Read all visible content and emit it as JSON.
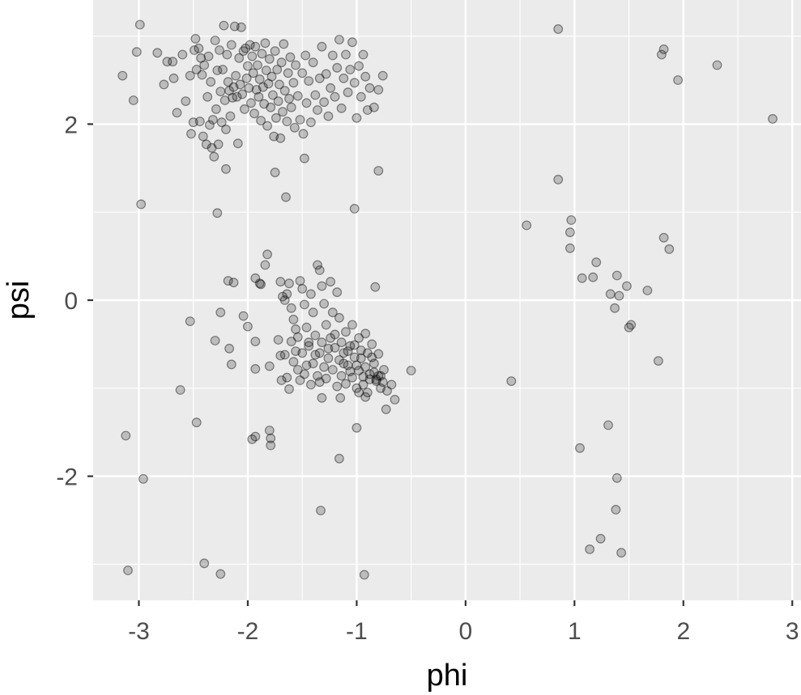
{
  "chart_data": {
    "type": "scatter",
    "title": "",
    "xlabel": "phi",
    "ylabel": "psi",
    "xlim": [
      -3.42,
      3.08
    ],
    "ylim": [
      -3.41,
      3.41
    ],
    "x_ticks": [
      -3,
      -2,
      -1,
      0,
      1,
      2,
      3
    ],
    "x_tick_labels": [
      "-3",
      "-2",
      "-1",
      "0",
      "1",
      "2",
      "3"
    ],
    "y_ticks": [
      -2,
      0,
      2
    ],
    "y_tick_labels": [
      "-2",
      "0",
      "2"
    ],
    "grid": true,
    "colors": {
      "panel_background": "#ebebeb",
      "grid_line": "#ffffff",
      "point_fill": "#000000",
      "point_opacity": 0.2,
      "axis_text": "#4d4d4d",
      "axis_title": "#000000"
    },
    "points": [
      [
        -2.99,
        3.13
      ],
      [
        -3.15,
        2.55
      ],
      [
        -3.02,
        2.82
      ],
      [
        -3.05,
        2.27
      ],
      [
        -2.98,
        1.09
      ],
      [
        -2.83,
        2.81
      ],
      [
        -2.74,
        2.71
      ],
      [
        -2.77,
        2.45
      ],
      [
        -2.69,
        2.71
      ],
      [
        -2.68,
        2.52
      ],
      [
        -2.65,
        2.13
      ],
      [
        -2.6,
        2.79
      ],
      [
        -2.57,
        2.26
      ],
      [
        -2.53,
        2.55
      ],
      [
        -2.52,
        1.89
      ],
      [
        -2.5,
        2.02
      ],
      [
        -2.49,
        2.84
      ],
      [
        -2.48,
        2.97
      ],
      [
        -2.47,
        2.62
      ],
      [
        -2.45,
        2.86
      ],
      [
        -2.44,
        2.03
      ],
      [
        -2.43,
        2.75
      ],
      [
        -2.42,
        2.56
      ],
      [
        -2.41,
        1.86
      ],
      [
        -2.4,
        2.67
      ],
      [
        -2.38,
        1.77
      ],
      [
        -2.37,
        2.31
      ],
      [
        -2.36,
        2.77
      ],
      [
        -2.35,
        1.99
      ],
      [
        -2.34,
        2.48
      ],
      [
        -2.33,
        1.73
      ],
      [
        -2.32,
        2.05
      ],
      [
        -2.31,
        1.63
      ],
      [
        -2.3,
        2.95
      ],
      [
        -2.29,
        2.17
      ],
      [
        -2.28,
        2.61
      ],
      [
        -2.27,
        1.77
      ],
      [
        -2.26,
        2.84
      ],
      [
        -2.25,
        2.37
      ],
      [
        -2.24,
        2.02
      ],
      [
        -2.23,
        2.62
      ],
      [
        -2.22,
        3.12
      ],
      [
        -2.21,
        2.27
      ],
      [
        -2.2,
        1.94
      ],
      [
        -2.19,
        2.79
      ],
      [
        -2.18,
        2.48
      ],
      [
        -2.17,
        2.38
      ],
      [
        -2.16,
        2.09
      ],
      [
        -2.15,
        2.9
      ],
      [
        -2.14,
        2.3
      ],
      [
        -2.13,
        2.42
      ],
      [
        -2.12,
        3.11
      ],
      [
        -2.11,
        2.55
      ],
      [
        -2.1,
        2.31
      ],
      [
        -2.09,
        1.78
      ],
      [
        -2.08,
        2.75
      ],
      [
        -2.07,
        2.45
      ],
      [
        -2.06,
        3.1
      ],
      [
        -2.05,
        2.34
      ],
      [
        -2.04,
        2.83
      ],
      [
        -2.03,
        2.17
      ],
      [
        -2.02,
        2.86
      ],
      [
        -2.01,
        2.52
      ],
      [
        -2.0,
        2.66
      ],
      [
        -1.99,
        2.41
      ],
      [
        -1.98,
        2.9
      ],
      [
        -1.97,
        2.24
      ],
      [
        -1.96,
        2.77
      ],
      [
        -1.95,
        2.58
      ],
      [
        -1.94,
        2.12
      ],
      [
        -1.93,
        2.88
      ],
      [
        -1.92,
        2.39
      ],
      [
        -1.91,
        2.67
      ],
      [
        -1.9,
        2.31
      ],
      [
        -1.89,
        2.51
      ],
      [
        -1.88,
        2.04
      ],
      [
        -1.87,
        2.8
      ],
      [
        -1.86,
        2.42
      ],
      [
        -1.85,
        2.23
      ],
      [
        -1.84,
        2.92
      ],
      [
        -1.83,
        2.61
      ],
      [
        -1.82,
        1.98
      ],
      [
        -1.81,
        2.46
      ],
      [
        -1.8,
        2.74
      ],
      [
        -1.79,
        2.19
      ],
      [
        -1.78,
        2.54
      ],
      [
        -1.77,
        2.33
      ],
      [
        -1.76,
        1.86
      ],
      [
        -1.75,
        2.83
      ],
      [
        -1.74,
        2.07
      ],
      [
        -1.73,
        2.62
      ],
      [
        -1.72,
        2.26
      ],
      [
        -1.71,
        2.45
      ],
      [
        -1.7,
        1.84
      ],
      [
        -1.69,
        2.7
      ],
      [
        -1.68,
        2.14
      ],
      [
        -1.67,
        2.91
      ],
      [
        -1.66,
        2.38
      ],
      [
        -1.65,
        1.17
      ],
      [
        -1.64,
        2.03
      ],
      [
        -1.63,
        2.58
      ],
      [
        -1.62,
        2.29
      ],
      [
        -1.61,
        2.76
      ],
      [
        -1.6,
        2.19
      ],
      [
        -1.58,
        2.47
      ],
      [
        -1.57,
        1.96
      ],
      [
        -1.56,
        2.67
      ],
      [
        -1.54,
        2.32
      ],
      [
        -1.52,
        2.05
      ],
      [
        -1.5,
        2.58
      ],
      [
        -1.49,
        1.89
      ],
      [
        -1.47,
        2.78
      ],
      [
        -1.46,
        2.24
      ],
      [
        -1.44,
        2.49
      ],
      [
        -1.42,
        2.02
      ],
      [
        -1.4,
        2.7
      ],
      [
        -1.38,
        2.33
      ],
      [
        -1.36,
        2.16
      ],
      [
        -1.34,
        2.52
      ],
      [
        -1.32,
        2.88
      ],
      [
        -1.3,
        2.25
      ],
      [
        -1.28,
        2.57
      ],
      [
        -1.26,
        2.09
      ],
      [
        -1.24,
        2.41
      ],
      [
        -1.22,
        2.78
      ],
      [
        -1.2,
        2.31
      ],
      [
        -1.18,
        2.64
      ],
      [
        -1.16,
        2.96
      ],
      [
        -1.14,
        2.18
      ],
      [
        -1.12,
        2.52
      ],
      [
        -1.1,
        2.79
      ],
      [
        -1.08,
        2.36
      ],
      [
        -1.06,
        2.62
      ],
      [
        -1.04,
        2.93
      ],
      [
        -1.02,
        2.47
      ],
      [
        -1.0,
        2.07
      ],
      [
        -0.98,
        2.66
      ],
      [
        -0.96,
        2.31
      ],
      [
        -0.94,
        2.79
      ],
      [
        -0.92,
        2.54
      ],
      [
        -0.9,
        2.16
      ],
      [
        -0.88,
        2.41
      ],
      [
        -0.84,
        2.19
      ],
      [
        -0.8,
        2.39
      ],
      [
        -0.76,
        2.55
      ],
      [
        -2.2,
        1.49
      ],
      [
        -1.75,
        1.45
      ],
      [
        -2.28,
        0.99
      ],
      [
        -1.48,
        1.61
      ],
      [
        -1.02,
        1.04
      ],
      [
        -0.8,
        1.47
      ],
      [
        -2.18,
        0.22
      ],
      [
        -2.13,
        0.2
      ],
      [
        -2.25,
        -0.14
      ],
      [
        -2.04,
        -0.18
      ],
      [
        -2.0,
        -0.3
      ],
      [
        -2.3,
        -0.46
      ],
      [
        -2.17,
        -0.55
      ],
      [
        -2.15,
        -0.73
      ],
      [
        -2.53,
        -0.24
      ],
      [
        -1.93,
        0.25
      ],
      [
        -1.89,
        0.19
      ],
      [
        -1.84,
        0.4
      ],
      [
        -1.82,
        0.52
      ],
      [
        -1.88,
        0.18
      ],
      [
        -1.93,
        -0.47
      ],
      [
        -1.93,
        -0.78
      ],
      [
        -1.8,
        -0.75
      ],
      [
        -1.7,
        0.21
      ],
      [
        -1.68,
        0.04
      ],
      [
        -1.66,
        0.0
      ],
      [
        -1.64,
        0.07
      ],
      [
        -1.62,
        0.19
      ],
      [
        -1.6,
        -0.09
      ],
      [
        -1.58,
        -0.22
      ],
      [
        -1.56,
        -0.33
      ],
      [
        -1.54,
        -0.42
      ],
      [
        -1.52,
        0.22
      ],
      [
        -1.5,
        0.13
      ],
      [
        -1.48,
        -0.05
      ],
      [
        -1.46,
        -0.31
      ],
      [
        -1.44,
        -0.48
      ],
      [
        -1.42,
        0.07
      ],
      [
        -1.4,
        -0.14
      ],
      [
        -1.38,
        -0.62
      ],
      [
        -1.36,
        0.4
      ],
      [
        -1.34,
        0.34
      ],
      [
        -1.32,
        0.16
      ],
      [
        -1.3,
        -0.04
      ],
      [
        -1.28,
        -0.28
      ],
      [
        -1.26,
        -0.55
      ],
      [
        -1.24,
        0.21
      ],
      [
        -1.22,
        -0.14
      ],
      [
        -1.2,
        -0.39
      ],
      [
        -1.18,
        0.09
      ],
      [
        -1.16,
        -0.2
      ],
      [
        -1.14,
        -0.48
      ],
      [
        -1.12,
        -0.72
      ],
      [
        -1.1,
        -0.36
      ],
      [
        -1.08,
        -0.58
      ],
      [
        -1.06,
        -0.81
      ],
      [
        -1.04,
        -0.28
      ],
      [
        -1.02,
        -0.51
      ],
      [
        -1.0,
        -0.74
      ],
      [
        -0.98,
        -0.43
      ],
      [
        -0.96,
        -0.66
      ],
      [
        -0.94,
        -0.87
      ],
      [
        -0.92,
        -0.38
      ],
      [
        -0.9,
        -0.6
      ],
      [
        -0.88,
        -0.84
      ],
      [
        -0.86,
        -0.5
      ],
      [
        -0.84,
        -0.72
      ],
      [
        -0.82,
        -0.92
      ],
      [
        -0.8,
        -0.61
      ],
      [
        -0.78,
        -0.86
      ],
      [
        -0.75,
        -0.79
      ],
      [
        -0.72,
        -1.03
      ],
      [
        -0.68,
        -0.96
      ],
      [
        -0.65,
        -1.13
      ],
      [
        -0.5,
        -0.8
      ],
      [
        -0.83,
        0.15
      ],
      [
        -1.72,
        -0.45
      ],
      [
        -1.7,
        -0.63
      ],
      [
        -1.69,
        -0.91
      ],
      [
        -1.66,
        -0.62
      ],
      [
        -1.64,
        -0.88
      ],
      [
        -1.62,
        -1.01
      ],
      [
        -1.6,
        -0.47
      ],
      [
        -1.58,
        -0.7
      ],
      [
        -1.56,
        -0.58
      ],
      [
        -1.54,
        -0.79
      ],
      [
        -1.52,
        -0.91
      ],
      [
        -1.5,
        -0.6
      ],
      [
        -1.48,
        -0.84
      ],
      [
        -1.46,
        -0.74
      ],
      [
        -1.44,
        -0.52
      ],
      [
        -1.42,
        -0.96
      ],
      [
        -1.4,
        -0.72
      ],
      [
        -1.38,
        -0.4
      ],
      [
        -1.36,
        -0.86
      ],
      [
        -1.34,
        -0.6
      ],
      [
        -1.32,
        -0.48
      ],
      [
        -1.3,
        -0.76
      ],
      [
        -1.28,
        -0.89
      ],
      [
        -1.26,
        -0.66
      ],
      [
        -1.24,
        -0.43
      ],
      [
        -1.22,
        -0.79
      ],
      [
        -1.2,
        -0.54
      ],
      [
        -1.18,
        -0.98
      ],
      [
        -1.16,
        -0.68
      ],
      [
        -1.14,
        -0.86
      ],
      [
        -1.12,
        -0.6
      ],
      [
        -1.1,
        -0.95
      ],
      [
        -1.08,
        -0.74
      ],
      [
        -1.06,
        -0.52
      ],
      [
        -1.04,
        -0.88
      ],
      [
        -1.02,
        -0.65
      ],
      [
        -1.0,
        -1.0
      ],
      [
        -0.98,
        -0.8
      ],
      [
        -0.96,
        -0.57
      ],
      [
        -0.94,
        -0.96
      ],
      [
        -0.92,
        -0.76
      ],
      [
        -0.9,
        -1.05
      ],
      [
        -0.88,
        -0.9
      ],
      [
        -0.86,
        -0.65
      ],
      [
        -0.84,
        -0.82
      ],
      [
        -0.82,
        -0.9
      ],
      [
        -0.8,
        -0.86
      ],
      [
        -0.78,
        -1.0
      ],
      [
        -0.76,
        -0.93
      ],
      [
        -0.73,
        -1.24
      ],
      [
        -1.32,
        -1.11
      ],
      [
        -1.15,
        -1.11
      ],
      [
        -0.98,
        -1.05
      ],
      [
        -0.92,
        -1.1
      ],
      [
        -1.34,
        -0.93
      ],
      [
        -1.8,
        -1.48
      ],
      [
        -1.79,
        -1.57
      ],
      [
        -1.96,
        -1.58
      ],
      [
        -1.93,
        -1.55
      ],
      [
        -1.79,
        -1.65
      ],
      [
        -1.0,
        -1.45
      ],
      [
        -2.62,
        -1.02
      ],
      [
        -2.47,
        -1.39
      ],
      [
        -1.16,
        -1.8
      ],
      [
        -3.12,
        -1.54
      ],
      [
        -2.96,
        -2.03
      ],
      [
        -1.33,
        -2.39
      ],
      [
        -2.4,
        -2.99
      ],
      [
        -2.25,
        -3.11
      ],
      [
        -3.1,
        -3.07
      ],
      [
        -0.93,
        -3.12
      ],
      [
        0.85,
        3.08
      ],
      [
        1.8,
        2.79
      ],
      [
        1.82,
        2.85
      ],
      [
        1.95,
        2.5
      ],
      [
        2.31,
        2.67
      ],
      [
        2.82,
        2.06
      ],
      [
        0.85,
        1.37
      ],
      [
        0.56,
        0.85
      ],
      [
        0.97,
        0.91
      ],
      [
        0.96,
        0.77
      ],
      [
        0.96,
        0.59
      ],
      [
        1.07,
        0.25
      ],
      [
        1.17,
        0.26
      ],
      [
        1.2,
        0.43
      ],
      [
        1.33,
        0.07
      ],
      [
        1.37,
        -0.09
      ],
      [
        1.39,
        0.28
      ],
      [
        1.41,
        0.05
      ],
      [
        1.48,
        0.16
      ],
      [
        1.5,
        -0.31
      ],
      [
        1.52,
        -0.28
      ],
      [
        1.67,
        0.11
      ],
      [
        1.82,
        0.71
      ],
      [
        1.87,
        0.58
      ],
      [
        1.77,
        -0.69
      ],
      [
        0.42,
        -0.92
      ],
      [
        1.05,
        -1.68
      ],
      [
        1.31,
        -1.42
      ],
      [
        1.39,
        -2.02
      ],
      [
        1.38,
        -2.38
      ],
      [
        1.24,
        -2.71
      ],
      [
        1.14,
        -2.83
      ],
      [
        1.43,
        -2.87
      ]
    ]
  }
}
